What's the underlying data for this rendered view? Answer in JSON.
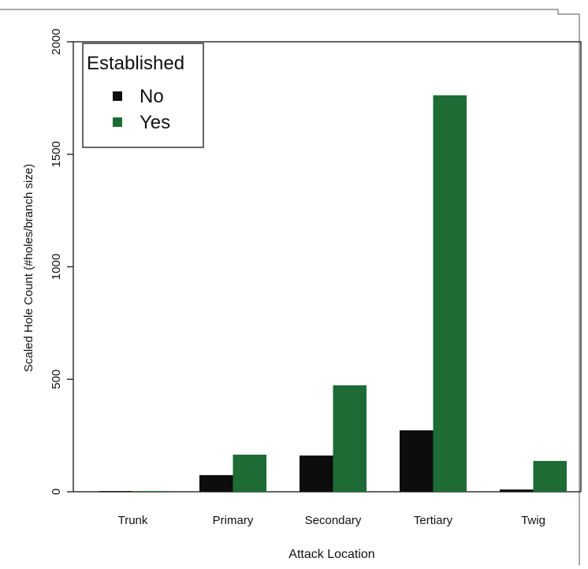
{
  "chart_data": {
    "type": "bar",
    "x_label": "Attack Location",
    "y_label": "Scaled Hole Count (#holes/branch size)",
    "categories": [
      "Trunk",
      "Primary",
      "Secondary",
      "Tertiary",
      "Twig"
    ],
    "series": [
      {
        "name": "No",
        "color": "#0d0d0d",
        "values": [
          3,
          74,
          161,
          273,
          10
        ]
      },
      {
        "name": "Yes",
        "color": "#1e6b35",
        "values": [
          3,
          165,
          473,
          1762,
          137
        ]
      }
    ],
    "legend_title": "Established",
    "legend_position": "top-left",
    "ylim": [
      0,
      2000
    ],
    "yticks": [
      0,
      500,
      1000,
      1500,
      2000
    ],
    "grid": false
  }
}
